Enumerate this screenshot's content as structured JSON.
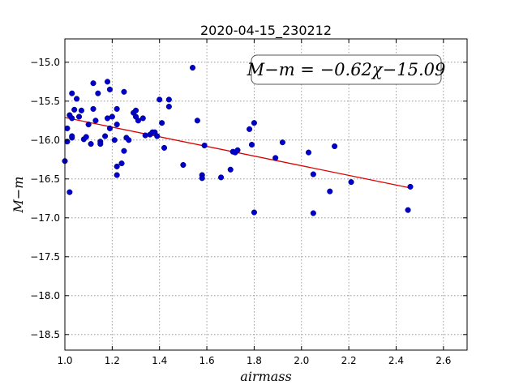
{
  "chart_data": {
    "type": "scatter",
    "title": "2020-04-15_230212",
    "xlabel": "airmass",
    "ylabel": "M−m",
    "xlim": [
      1.0,
      2.7
    ],
    "ylim": [
      -14.7,
      -18.7
    ],
    "x_ticks": [
      1.0,
      1.2,
      1.4,
      1.6,
      1.8,
      2.0,
      2.2,
      2.4,
      2.6
    ],
    "x_tick_labels": [
      "1.0",
      "1.2",
      "1.4",
      "1.6",
      "1.8",
      "2.0",
      "2.2",
      "2.4",
      "2.6"
    ],
    "y_ticks": [
      -15.0,
      -15.5,
      -16.0,
      -16.5,
      -17.0,
      -17.5,
      -18.0,
      -18.5
    ],
    "y_tick_labels": [
      "−15.0",
      "−15.5",
      "−16.0",
      "−16.5",
      "−17.0",
      "−17.5",
      "−18.0",
      "−18.5"
    ],
    "grid": true,
    "annotation": "M−m = −0.62χ−15.09",
    "fit_line": {
      "slope": -0.62,
      "intercept": -15.09,
      "x_range": [
        1.0,
        2.46
      ],
      "color": "#dd0000"
    },
    "point_color": "#0000cc",
    "points": [
      [
        1.0,
        -16.27
      ],
      [
        1.01,
        -15.85
      ],
      [
        1.01,
        -16.02
      ],
      [
        1.02,
        -15.68
      ],
      [
        1.02,
        -16.67
      ],
      [
        1.03,
        -15.72
      ],
      [
        1.03,
        -15.97
      ],
      [
        1.03,
        -15.95
      ],
      [
        1.03,
        -15.4
      ],
      [
        1.04,
        -15.61
      ],
      [
        1.05,
        -15.47
      ],
      [
        1.06,
        -15.7
      ],
      [
        1.07,
        -15.62
      ],
      [
        1.08,
        -15.99
      ],
      [
        1.09,
        -15.96
      ],
      [
        1.1,
        -15.8
      ],
      [
        1.11,
        -16.05
      ],
      [
        1.12,
        -15.27
      ],
      [
        1.12,
        -15.6
      ],
      [
        1.13,
        -15.75
      ],
      [
        1.14,
        -15.4
      ],
      [
        1.15,
        -16.02
      ],
      [
        1.15,
        -16.05
      ],
      [
        1.17,
        -15.95
      ],
      [
        1.18,
        -15.72
      ],
      [
        1.18,
        -15.25
      ],
      [
        1.19,
        -15.35
      ],
      [
        1.19,
        -15.85
      ],
      [
        1.2,
        -15.7
      ],
      [
        1.21,
        -16.0
      ],
      [
        1.22,
        -15.8
      ],
      [
        1.22,
        -15.6
      ],
      [
        1.22,
        -16.34
      ],
      [
        1.22,
        -16.45
      ],
      [
        1.24,
        -16.3
      ],
      [
        1.25,
        -15.38
      ],
      [
        1.25,
        -16.14
      ],
      [
        1.26,
        -15.97
      ],
      [
        1.27,
        -16.0
      ],
      [
        1.29,
        -15.65
      ],
      [
        1.3,
        -15.62
      ],
      [
        1.3,
        -15.7
      ],
      [
        1.31,
        -15.75
      ],
      [
        1.33,
        -15.72
      ],
      [
        1.34,
        -15.94
      ],
      [
        1.36,
        -15.93
      ],
      [
        1.37,
        -15.9
      ],
      [
        1.38,
        -15.9
      ],
      [
        1.39,
        -15.95
      ],
      [
        1.4,
        -15.48
      ],
      [
        1.41,
        -15.78
      ],
      [
        1.42,
        -16.1
      ],
      [
        1.44,
        -15.48
      ],
      [
        1.44,
        -15.57
      ],
      [
        1.5,
        -16.32
      ],
      [
        1.54,
        -15.07
      ],
      [
        1.56,
        -15.75
      ],
      [
        1.58,
        -16.45
      ],
      [
        1.58,
        -16.49
      ],
      [
        1.59,
        -16.07
      ],
      [
        1.66,
        -16.48
      ],
      [
        1.7,
        -16.38
      ],
      [
        1.71,
        -16.15
      ],
      [
        1.72,
        -16.16
      ],
      [
        1.73,
        -16.13
      ],
      [
        1.78,
        -15.86
      ],
      [
        1.79,
        -16.06
      ],
      [
        1.8,
        -15.78
      ],
      [
        1.8,
        -16.93
      ],
      [
        1.89,
        -16.23
      ],
      [
        1.92,
        -16.03
      ],
      [
        2.03,
        -16.16
      ],
      [
        2.05,
        -16.94
      ],
      [
        2.05,
        -16.44
      ],
      [
        2.12,
        -16.66
      ],
      [
        2.14,
        -16.08
      ],
      [
        2.21,
        -16.54
      ],
      [
        2.45,
        -16.9
      ],
      [
        2.46,
        -16.6
      ]
    ]
  }
}
